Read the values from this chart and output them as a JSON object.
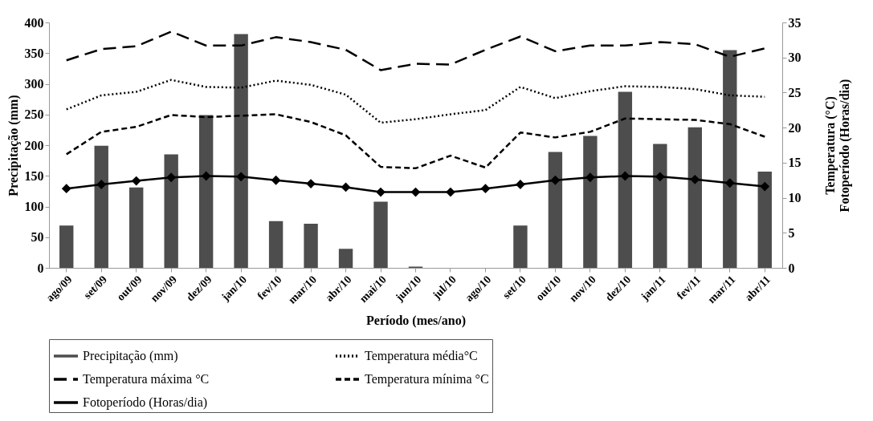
{
  "chart_data": {
    "type": "bar",
    "xlabel": "Período (mes/ano)",
    "ylabel": "Precipitação (mm)",
    "y2label": "Temperatura (°C)\nFotoperíodo (Horas/dia)",
    "categories": [
      "ago/09",
      "set/09",
      "out/09",
      "nov/09",
      "dez/09",
      "jan/10",
      "fev/10",
      "mar/10",
      "abr/10",
      "mai/10",
      "jun/10",
      "jul/10",
      "ago/10",
      "set/10",
      "out/10",
      "nov/10",
      "dez/10",
      "jan/11",
      "fev/11",
      "mar/11",
      "abr/11"
    ],
    "series": [
      {
        "name": "Precipitação (mm)",
        "color": "#4d4d4d",
        "values": [
          69,
          199,
          131,
          185,
          249,
          381,
          76,
          72,
          31,
          108,
          2,
          0,
          0,
          69,
          189,
          215,
          287,
          202,
          229,
          355,
          157
        ]
      },
      {
        "name": "Temperatura média°C",
        "type": "line",
        "axis": "y2",
        "color": "#000000",
        "line_style": "dotted",
        "marker": "none",
        "values": [
          22.6,
          24.6,
          25.1,
          26.8,
          25.8,
          25.7,
          26.7,
          26.1,
          24.7,
          20.7,
          21.2,
          21.9,
          22.5,
          25.8,
          24.2,
          25.2,
          25.9,
          25.8,
          25.5,
          24.6,
          24.4
        ]
      },
      {
        "name": "Temperatura máxima °C",
        "type": "line",
        "axis": "y2",
        "color": "#000000",
        "line_style": "longdash",
        "marker": "none",
        "values": [
          29.6,
          31.2,
          31.6,
          33.7,
          31.7,
          31.7,
          32.9,
          32.2,
          31.1,
          28.2,
          29.1,
          29.0,
          31.1,
          33.0,
          30.9,
          31.7,
          31.7,
          32.2,
          31.9,
          30.1,
          31.3
        ]
      },
      {
        "name": "Temperatura mínima °C",
        "type": "line",
        "axis": "y2",
        "color": "#000000",
        "line_style": "dashed",
        "marker": "none",
        "values": [
          16.2,
          19.4,
          20.1,
          21.8,
          21.5,
          21.7,
          21.9,
          20.8,
          18.9,
          14.4,
          14.2,
          16.0,
          14.3,
          19.3,
          18.6,
          19.4,
          21.3,
          21.2,
          21.1,
          20.5,
          18.7
        ]
      },
      {
        "name": "Fotoperíodo (Horas/dia)",
        "type": "line",
        "axis": "y2",
        "color": "#000000",
        "line_style": "solid",
        "marker": "diamond",
        "values": [
          11.3,
          11.9,
          12.4,
          12.9,
          13.1,
          13.0,
          12.5,
          12.0,
          11.5,
          10.8,
          10.8,
          10.8,
          11.3,
          11.9,
          12.5,
          12.9,
          13.1,
          13.0,
          12.6,
          12.1,
          11.6
        ]
      }
    ],
    "ylim": [
      0,
      400
    ],
    "yticks": [
      0,
      50,
      100,
      150,
      200,
      250,
      300,
      350,
      400
    ],
    "y2lim": [
      0,
      35
    ],
    "y2ticks": [
      0,
      5,
      10,
      15,
      20,
      25,
      30,
      35
    ],
    "legend": "bottom",
    "grid": false
  }
}
